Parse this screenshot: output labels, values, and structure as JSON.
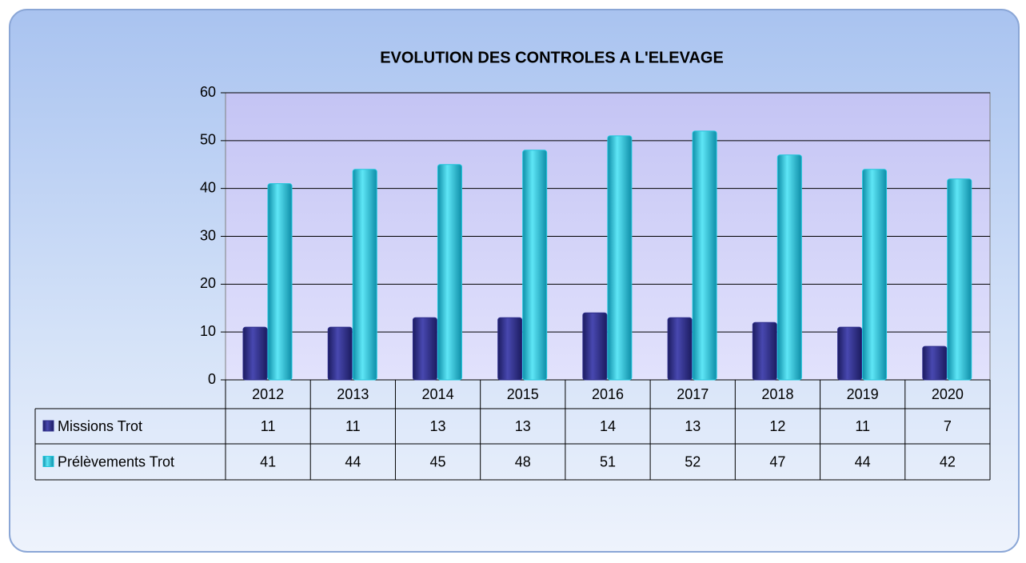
{
  "chart_data": {
    "type": "bar",
    "title": "EVOLUTION DES CONTROLES A L'ELEVAGE",
    "categories": [
      "2012",
      "2013",
      "2014",
      "2015",
      "2016",
      "2017",
      "2018",
      "2019",
      "2020"
    ],
    "series": [
      {
        "name": "Missions Trot",
        "color": "#2e2e8c",
        "values": [
          11,
          11,
          13,
          13,
          14,
          13,
          12,
          11,
          7
        ]
      },
      {
        "name": "Prélèvements Trot",
        "color": "#1fc6dc",
        "values": [
          41,
          44,
          45,
          48,
          51,
          52,
          47,
          44,
          42
        ]
      }
    ],
    "ylim": [
      0,
      60
    ],
    "yticks": [
      0,
      10,
      20,
      30,
      40,
      50,
      60
    ],
    "grid": true
  }
}
